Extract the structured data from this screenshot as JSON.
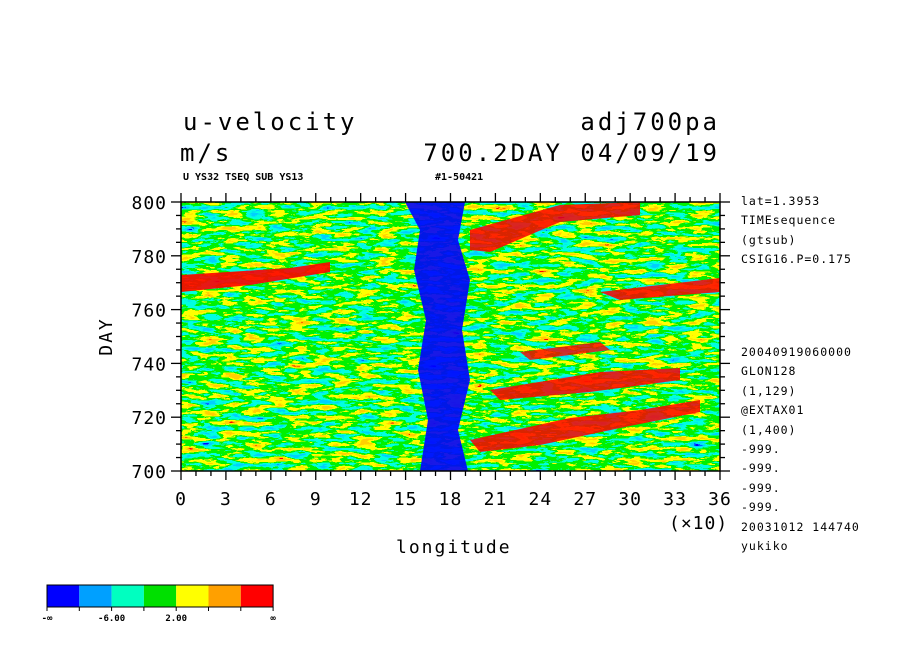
{
  "header": {
    "left_line1": "u-velocity",
    "left_line2": "m/s",
    "right_line1": "adj700pa",
    "right_line2": "700.2DAY 04/09/19",
    "subtitle_left": "U YS32 TSEQ SUB YS13",
    "subtitle_right": "#1-50421"
  },
  "right_info_top": [
    "lat=1.3953",
    "TIMEsequence",
    "(gtsub)",
    "CSIG16.P=0.175"
  ],
  "right_info_bottom": [
    "20040919060000",
    "GLON128",
    "(1,129)",
    "@EXTAX01",
    "(1,400)",
    "-999.",
    "-999.",
    "-999.",
    "-999.",
    "20031012 144740",
    "yukiko"
  ],
  "colorbar": {
    "colors": [
      "#0000ff",
      "#00a0ff",
      "#00ffc0",
      "#00e000",
      "#ffff00",
      "#ffa000",
      "#ff0000"
    ],
    "labels": [
      "-∞",
      "-6.00",
      "2.00",
      "∞"
    ]
  },
  "chart_data": {
    "type": "heatmap",
    "xlabel": "longitude",
    "ylabel": "DAY",
    "x_multiplier": "(×10)",
    "xlim": [
      0,
      36
    ],
    "ylim": [
      700,
      800
    ],
    "x_ticks": [
      "0",
      "3",
      "6",
      "9",
      "12",
      "15",
      "18",
      "21",
      "24",
      "27",
      "30",
      "33",
      "36"
    ],
    "y_ticks": [
      "700",
      "720",
      "740",
      "760",
      "780",
      "800"
    ],
    "color_levels": [
      "-∞",
      "-6.00",
      "2.00",
      "∞"
    ],
    "features": {
      "strong_easterly_band_lon_x10": [
        15,
        18
      ],
      "strong_westerly_regions": "scattered red streaks, mainly east of 21 (×10) and along DAY 770 west of 6 (×10)"
    }
  }
}
